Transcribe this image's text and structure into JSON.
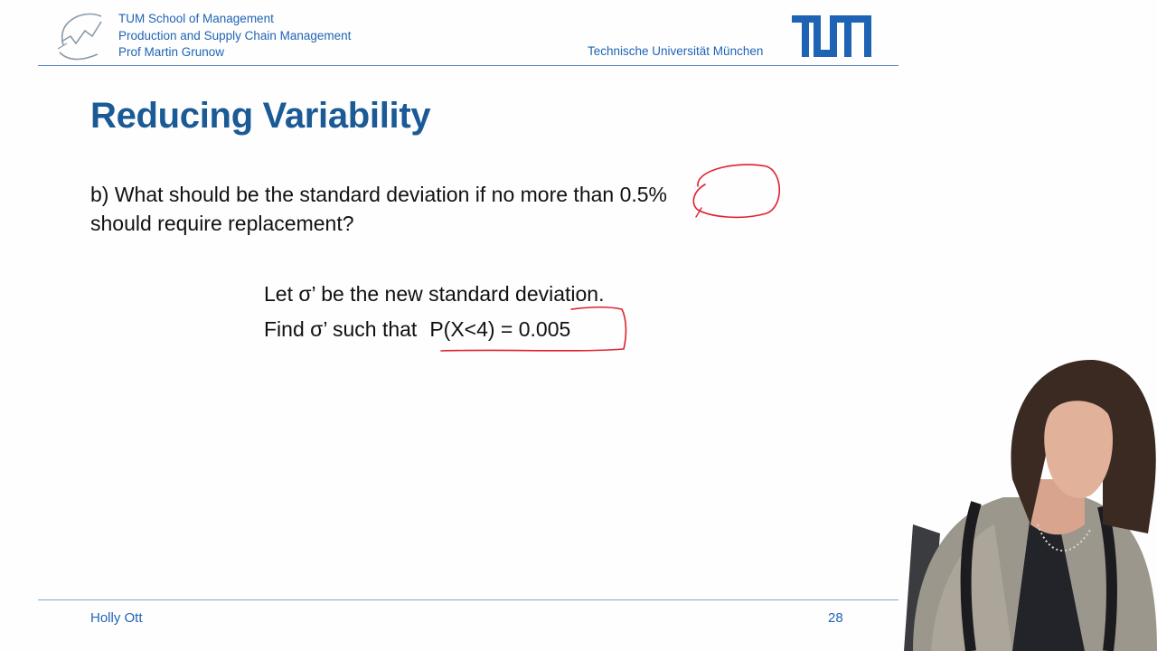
{
  "header": {
    "school": "TUM School of Management",
    "chair": "Production and Supply Chain Management",
    "professor": "Prof Martin Grunow",
    "university": "Technische Universität München",
    "logo_icon": "tum-logo-icon",
    "brand_color": "#1f64b4"
  },
  "slide": {
    "title": "Reducing Variability",
    "title_color": "#1a5a96",
    "question_line1": "b) What should be the standard deviation if no more than 0.5%",
    "question_line2": "should require replacement?",
    "work_line1": "Let σ’ be the new standard deviation.",
    "work_line2_prefix": "Find σ’ such that",
    "work_line2_expr": "P(X<4) = 0.005"
  },
  "annotations": {
    "ink_color": "#e02030",
    "circled_value": "0.5%",
    "boxed_expression": "P(X<4) = 0.005"
  },
  "footer": {
    "presenter": "Holly Ott",
    "page_number": "28"
  }
}
